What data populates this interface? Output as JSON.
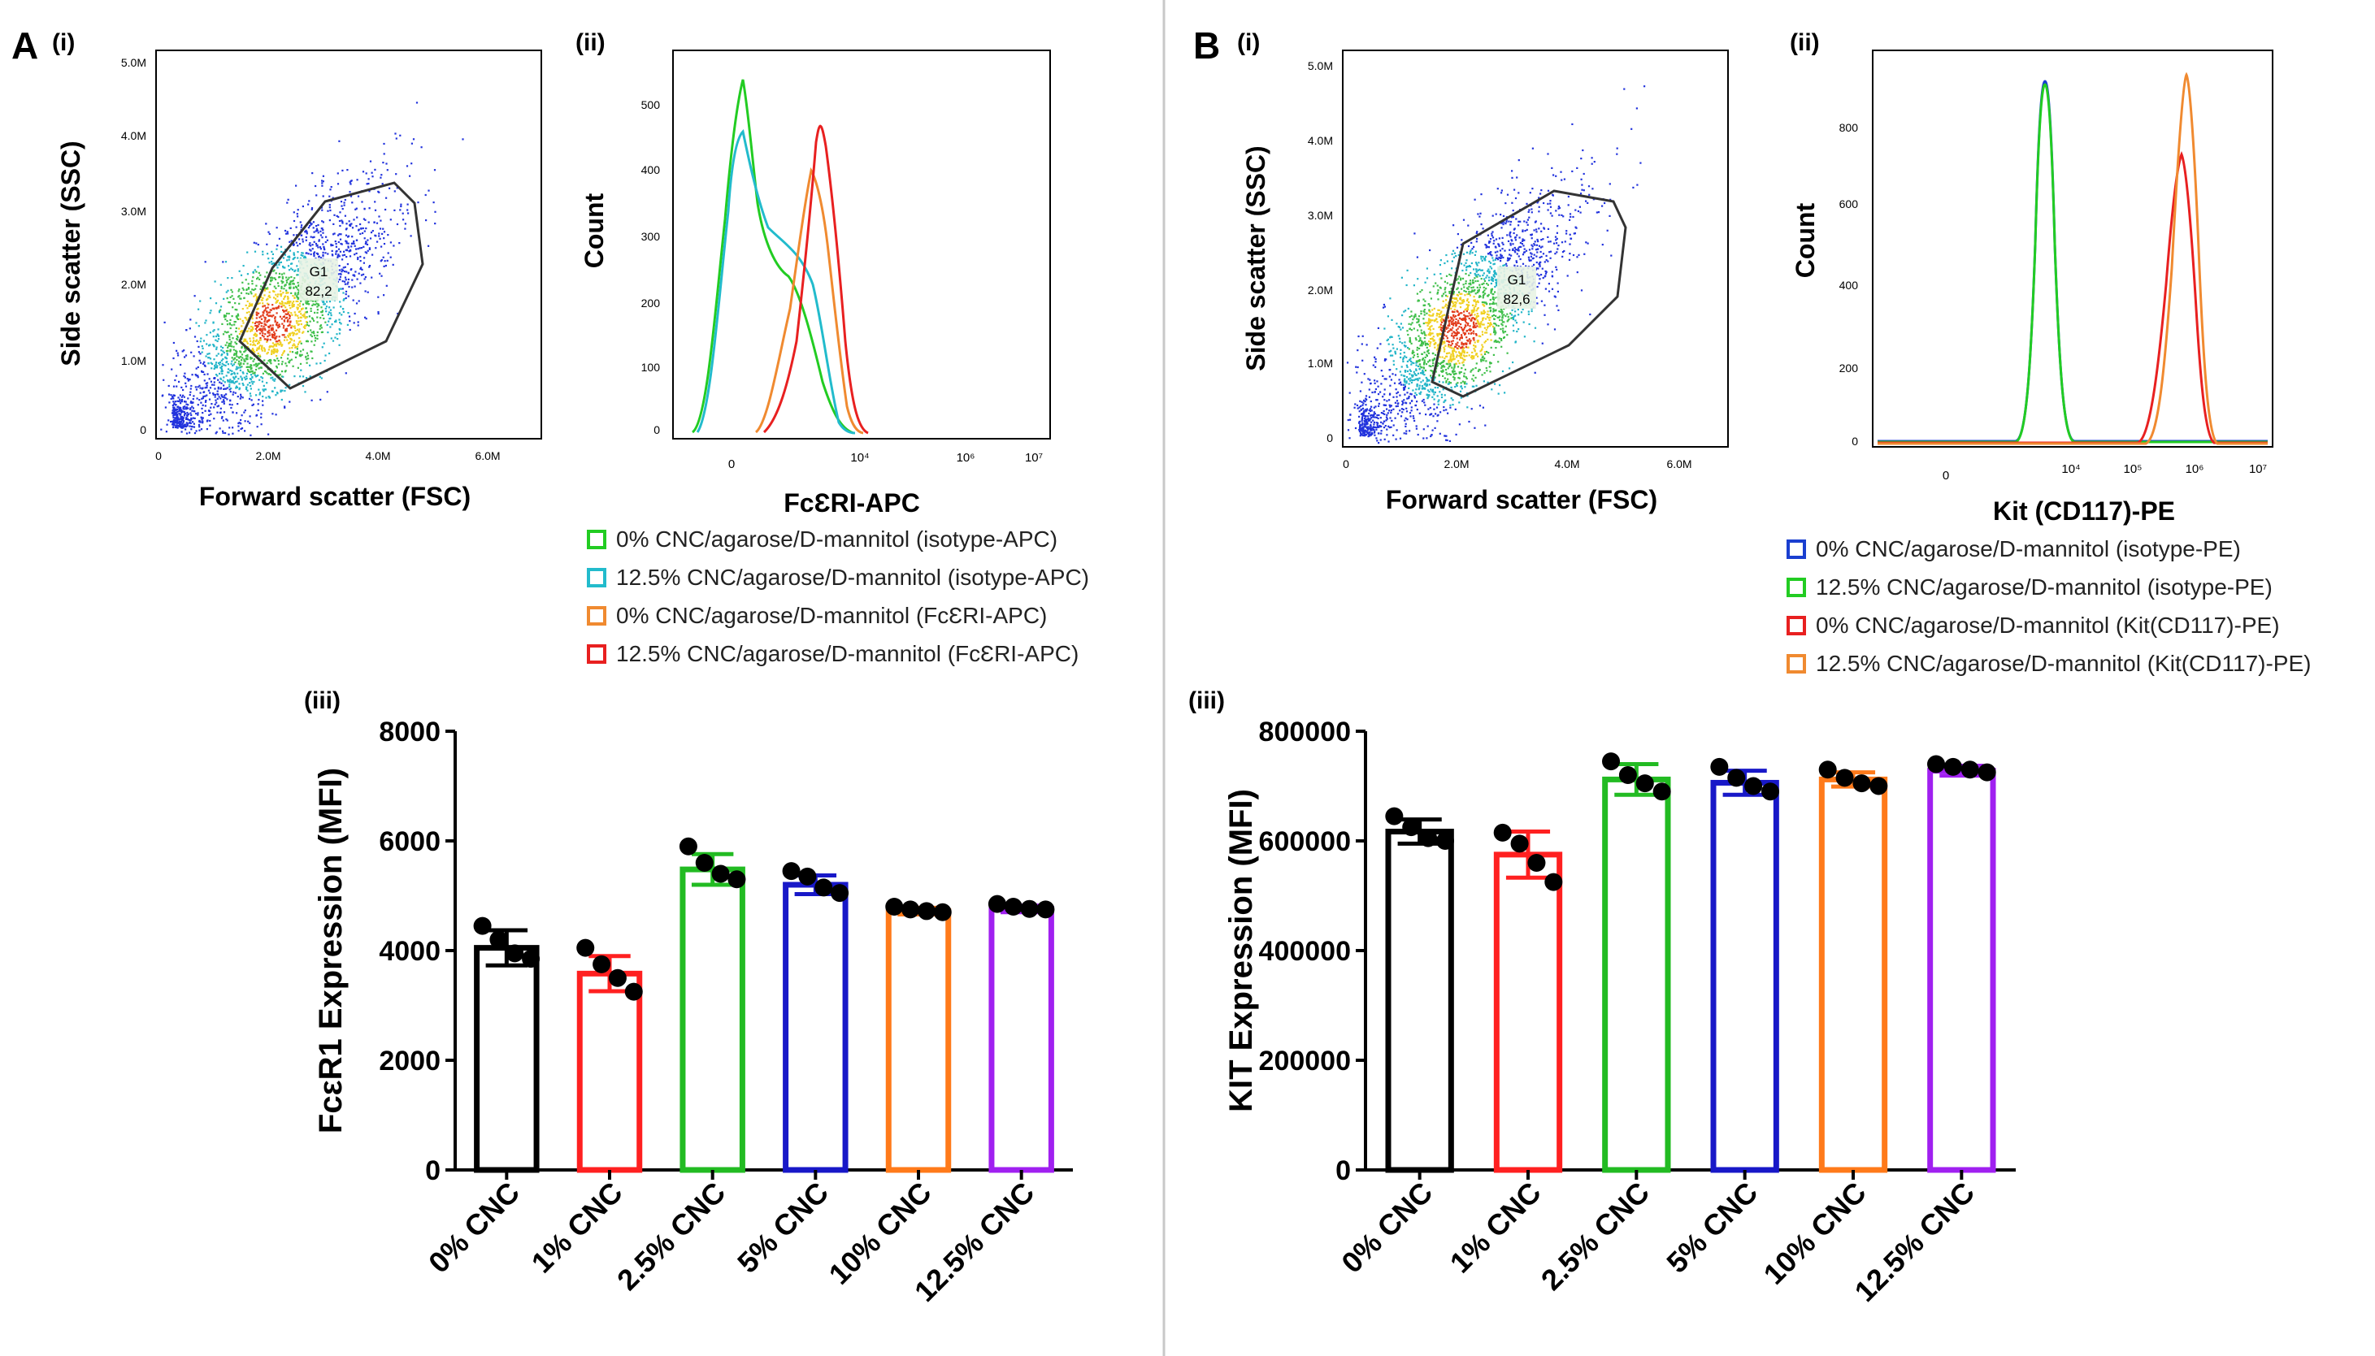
{
  "panels": {
    "A": {
      "letter": "A",
      "sub_i": "(i)",
      "sub_ii": "(ii)",
      "sub_iii": "(iii)",
      "scatter": {
        "xlabel": "Forward scatter (FSC)",
        "ylabel": "Side scatter (SSC)",
        "x_ticks": [
          "0",
          "2.0M",
          "4.0M",
          "6.0M"
        ],
        "y_ticks": [
          "0",
          "1.0M",
          "2.0M",
          "3.0M",
          "4.0M",
          "5.0M"
        ],
        "gate_name": "G1",
        "gate_value": "82,2"
      },
      "histogram": {
        "xlabel": "FcƐRI-APC",
        "ylabel": "Count",
        "y_ticks": [
          "0",
          "100",
          "200",
          "300",
          "400",
          "500"
        ],
        "x_ticks": [
          "0",
          "10⁴",
          "10⁶",
          "10⁷"
        ],
        "legend": [
          {
            "label": "0% CNC/agarose/D-mannitol (isotype-APC)",
            "color": "#22cc22"
          },
          {
            "label": "12.5% CNC/agarose/D-mannitol (isotype-APC)",
            "color": "#22bbcc"
          },
          {
            "label": "0% CNC/agarose/D-mannitol (FcƐRI-APC)",
            "color": "#f08a30"
          },
          {
            "label": "12.5% CNC/agarose/D-mannitol (FcƐRI-APC)",
            "color": "#e82020"
          }
        ]
      }
    },
    "B": {
      "letter": "B",
      "sub_i": "(i)",
      "sub_ii": "(ii)",
      "sub_iii": "(iii)",
      "scatter": {
        "xlabel": "Forward scatter (FSC)",
        "ylabel": "Side scatter (SSC)",
        "x_ticks": [
          "0",
          "2.0M",
          "4.0M",
          "6.0M"
        ],
        "y_ticks": [
          "0",
          "1.0M",
          "2.0M",
          "3.0M",
          "4.0M",
          "5.0M"
        ],
        "gate_name": "G1",
        "gate_value": "82,6"
      },
      "histogram": {
        "xlabel": "Kit (CD117)-PE",
        "ylabel": "Count",
        "y_ticks": [
          "0",
          "200",
          "400",
          "600",
          "800"
        ],
        "x_ticks": [
          "0",
          "10⁴",
          "10⁵",
          "10⁶",
          "10⁷"
        ],
        "legend": [
          {
            "label": "0% CNC/agarose/D-mannitol (isotype-PE)",
            "color": "#1a3fd0"
          },
          {
            "label": "12.5% CNC/agarose/D-mannitol (isotype-PE)",
            "color": "#22cc22"
          },
          {
            "label": "0% CNC/agarose/D-mannitol (Kit(CD117)-PE)",
            "color": "#e82020"
          },
          {
            "label": "12.5% CNC/agarose/D-mannitol (Kit(CD117)-PE)",
            "color": "#f08a30"
          }
        ]
      }
    }
  },
  "chart_data": [
    {
      "panel": "A(iii)",
      "type": "bar",
      "ylabel": "FcεR1 Expression (MFI)",
      "xlabel": "",
      "ylim": [
        0,
        8000
      ],
      "y_ticks": [
        0,
        2000,
        4000,
        6000,
        8000
      ],
      "categories": [
        "0% CNC",
        "1% CNC",
        "2.5% CNC",
        "5% CNC",
        "10% CNC",
        "12.5% CNC"
      ],
      "values": [
        4050,
        3580,
        5480,
        5200,
        4720,
        4760
      ],
      "errors": [
        320,
        320,
        280,
        170,
        60,
        60
      ],
      "colors": [
        "#000000",
        "#ff2020",
        "#22bb22",
        "#1818c8",
        "#ff7a1a",
        "#a020f0"
      ],
      "points": [
        [
          4450,
          4200,
          3950,
          3850
        ],
        [
          4050,
          3750,
          3500,
          3250
        ],
        [
          5900,
          5600,
          5400,
          5300
        ],
        [
          5450,
          5350,
          5150,
          5050
        ],
        [
          4800,
          4750,
          4720,
          4700
        ],
        [
          4850,
          4800,
          4760,
          4750
        ]
      ]
    },
    {
      "panel": "B(iii)",
      "type": "bar",
      "ylabel": "KIT Expression (MFI)",
      "xlabel": "",
      "ylim": [
        0,
        800000
      ],
      "y_ticks": [
        0,
        200000,
        400000,
        600000,
        800000
      ],
      "categories": [
        "0% CNC",
        "1% CNC",
        "2.5% CNC",
        "5% CNC",
        "10% CNC",
        "12.5% CNC"
      ],
      "values": [
        617000,
        575000,
        712000,
        706000,
        712000,
        728000
      ],
      "errors": [
        22000,
        42000,
        28000,
        22000,
        13000,
        9000
      ],
      "colors": [
        "#000000",
        "#ff2020",
        "#22bb22",
        "#1818c8",
        "#ff7a1a",
        "#a020f0"
      ],
      "points": [
        [
          645000,
          625000,
          605000,
          600000
        ],
        [
          615000,
          595000,
          560000,
          525000
        ],
        [
          745000,
          720000,
          705000,
          690000
        ],
        [
          735000,
          715000,
          700000,
          690000
        ],
        [
          730000,
          715000,
          705000,
          700000
        ],
        [
          740000,
          735000,
          730000,
          725000
        ]
      ]
    }
  ]
}
